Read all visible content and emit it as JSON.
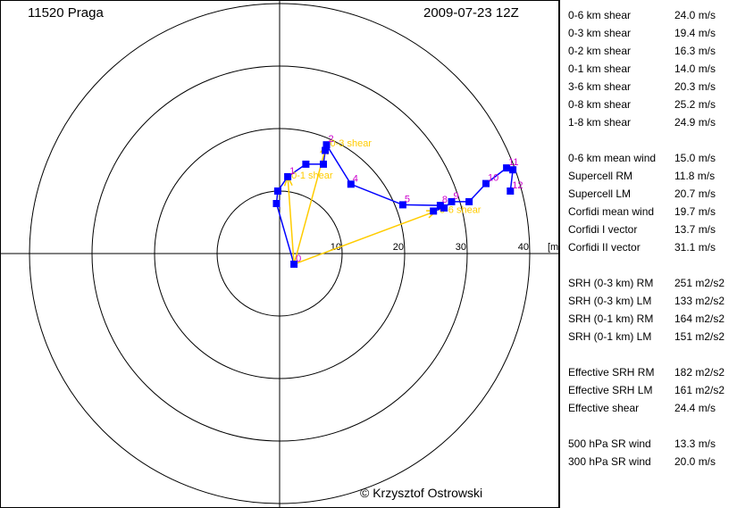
{
  "header": {
    "station": "11520 Praga",
    "datetime": "2009-07-23 12Z"
  },
  "copyright": "© Krzysztof Ostrowski",
  "colors": {
    "hodograph": "#0000ff",
    "shear_vectors": "#ffcc00",
    "level_labels": "#cc00cc",
    "rings": "#000000"
  },
  "chart_data": {
    "type": "scatter",
    "title": "",
    "unit_label": "[m/s",
    "rings": [
      10,
      20,
      30,
      40
    ],
    "ring_labels": [
      "10",
      "20",
      "30",
      "40"
    ],
    "xlim": [
      -44,
      44
    ],
    "ylim": [
      -39,
      41
    ],
    "hodograph": [
      {
        "u": 2.3,
        "v": -1.7,
        "label": "0"
      },
      {
        "u": -0.5,
        "v": 8.0,
        "label": ""
      },
      {
        "u": -0.3,
        "v": 10.0,
        "label": ""
      },
      {
        "u": 1.3,
        "v": 12.3,
        "label": "1"
      },
      {
        "u": 4.2,
        "v": 14.3,
        "label": ""
      },
      {
        "u": 7.0,
        "v": 14.3,
        "label": ""
      },
      {
        "u": 7.3,
        "v": 16.5,
        "label": ""
      },
      {
        "u": 7.5,
        "v": 17.4,
        "label": "2"
      },
      {
        "u": 11.4,
        "v": 11.1,
        "label": "4"
      },
      {
        "u": 19.7,
        "v": 7.8,
        "label": "5"
      },
      {
        "u": 25.7,
        "v": 7.7,
        "label": "8"
      },
      {
        "u": 24.6,
        "v": 6.8,
        "label": ""
      },
      {
        "u": 26.3,
        "v": 7.3,
        "label": ""
      },
      {
        "u": 27.5,
        "v": 8.3,
        "label": "9"
      },
      {
        "u": 30.3,
        "v": 8.3,
        "label": ""
      },
      {
        "u": 33.0,
        "v": 11.2,
        "label": "10"
      },
      {
        "u": 36.3,
        "v": 13.7,
        "label": "11"
      },
      {
        "u": 37.3,
        "v": 13.4,
        "label": ""
      },
      {
        "u": 36.9,
        "v": 10.0,
        "label": "12"
      }
    ],
    "shear_vectors": [
      {
        "from_u": 2.3,
        "from_v": -1.7,
        "to_u": 1.3,
        "to_v": 12.3,
        "label": "0-1 shear"
      },
      {
        "from_u": 2.3,
        "from_v": -1.7,
        "to_u": 7.5,
        "to_v": 17.4,
        "label": "0-3 shear"
      },
      {
        "from_u": 2.3,
        "from_v": -1.7,
        "to_u": 25.0,
        "to_v": 6.8,
        "label": "0-6 shear"
      }
    ]
  },
  "table": {
    "groups": [
      [
        {
          "label": "0-6 km shear",
          "value": "24.0 m/s"
        },
        {
          "label": "0-3 km shear",
          "value": "19.4 m/s"
        },
        {
          "label": "0-2 km shear",
          "value": "16.3 m/s"
        },
        {
          "label": "0-1 km shear",
          "value": "14.0 m/s"
        },
        {
          "label": "3-6 km shear",
          "value": "20.3 m/s"
        },
        {
          "label": "0-8 km shear",
          "value": "25.2 m/s"
        },
        {
          "label": "1-8 km shear",
          "value": "24.9 m/s"
        }
      ],
      [
        {
          "label": "0-6 km mean wind",
          "value": "15.0 m/s"
        },
        {
          "label": "Supercell RM",
          "value": "11.8 m/s"
        },
        {
          "label": "Supercell LM",
          "value": "20.7 m/s"
        },
        {
          "label": "Corfidi mean wind",
          "value": "19.7 m/s"
        },
        {
          "label": "Corfidi I vector",
          "value": "13.7 m/s"
        },
        {
          "label": "Corfidi II vector",
          "value": "31.1 m/s"
        }
      ],
      [
        {
          "label": "SRH (0-3 km) RM",
          "value": "251 m2/s2"
        },
        {
          "label": "SRH (0-3 km) LM",
          "value": "133 m2/s2"
        },
        {
          "label": "SRH (0-1 km) RM",
          "value": "164 m2/s2"
        },
        {
          "label": "SRH (0-1 km) LM",
          "value": "151 m2/s2"
        }
      ],
      [
        {
          "label": "Effective SRH RM",
          "value": "182 m2/s2"
        },
        {
          "label": "Effective SRH LM",
          "value": "161 m2/s2"
        },
        {
          "label": "Effective shear",
          "value": "24.4 m/s"
        }
      ],
      [
        {
          "label": "500 hPa SR wind",
          "value": "13.3 m/s"
        },
        {
          "label": "300 hPa SR wind",
          "value": "20.0 m/s"
        }
      ]
    ]
  }
}
